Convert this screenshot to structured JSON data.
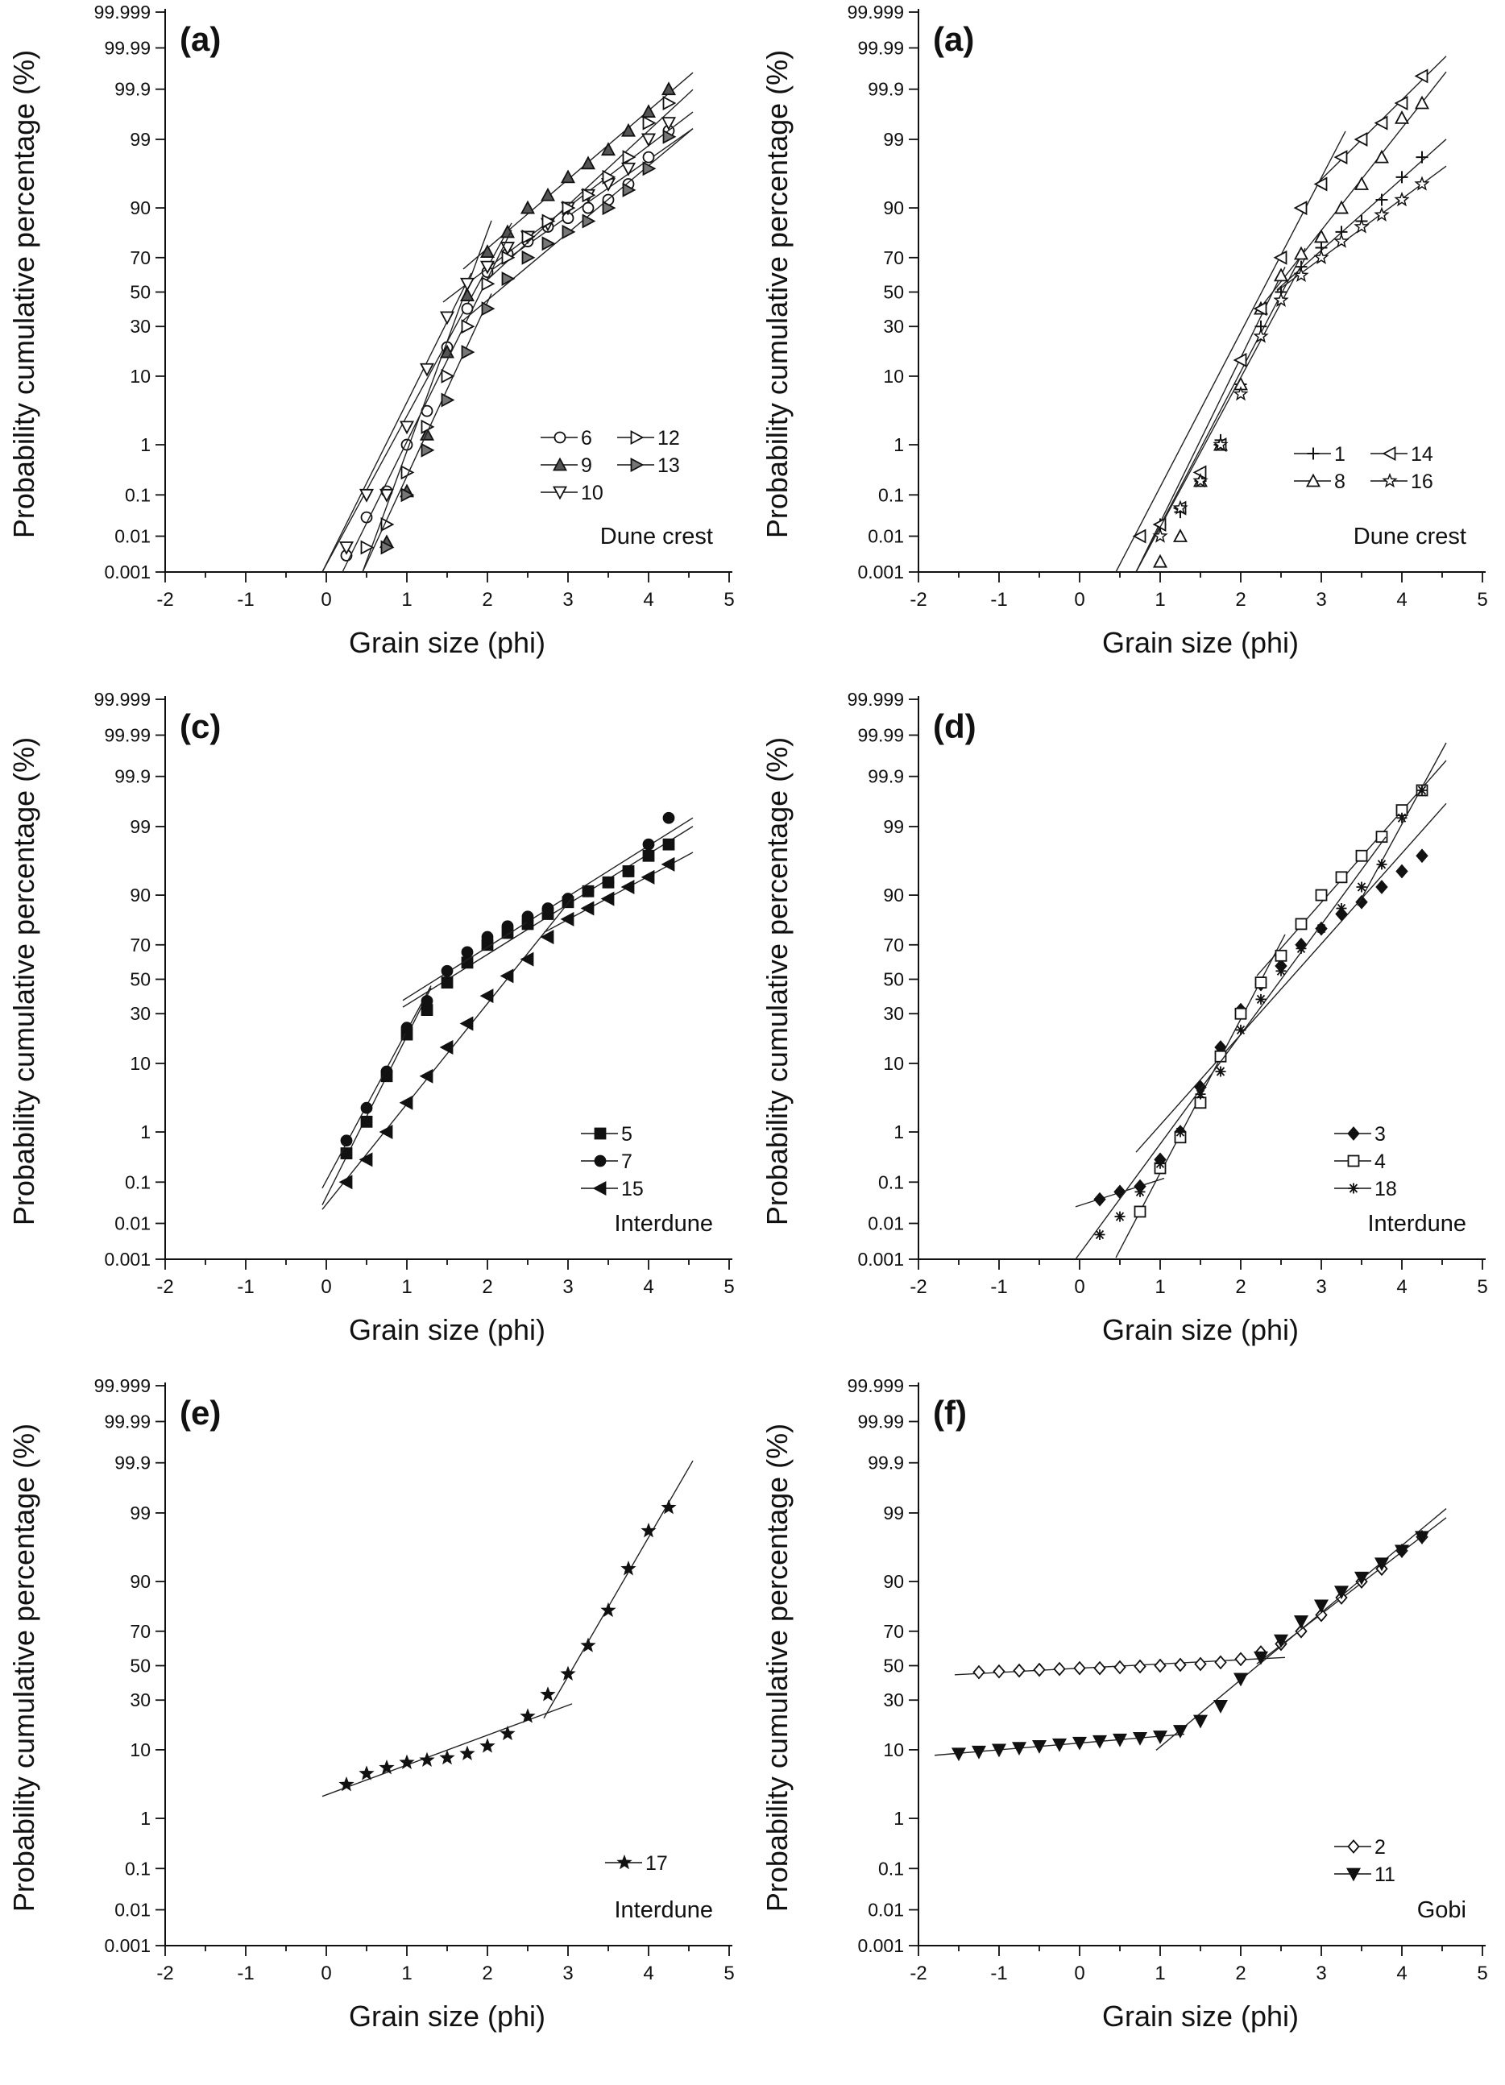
{
  "figure": {
    "ylabel": "Probability cumulative percentage (%)",
    "xlabel": "Grain size (phi)",
    "x_ticks": [
      "-2",
      "-1",
      "0",
      "1",
      "2",
      "3",
      "4",
      "5"
    ],
    "y_ticks": [
      "0.001",
      "0.01",
      "0.1",
      "1",
      "10",
      "30",
      "50",
      "70",
      "90",
      "99",
      "99.9",
      "99.99",
      "99.999"
    ]
  },
  "chart_data": [
    {
      "type": "scatter",
      "panel_label": "(a)",
      "env_label": "Dune crest",
      "title": "",
      "xlabel": "Grain size (phi)",
      "ylabel": "Probability cumulative percentage (%)",
      "xlim": [
        -2,
        5
      ],
      "ylim": [
        0.001,
        99.999
      ],
      "y_scale": "probability",
      "legend": {
        "position": "bottom-right",
        "columns": 2,
        "entries": [
          "6",
          "12",
          "9",
          "13",
          "10"
        ]
      },
      "series": [
        {
          "name": "6",
          "marker": "circle-open",
          "x": [
            0.25,
            0.5,
            0.75,
            1.0,
            1.25,
            1.5,
            1.75,
            2.0,
            2.25,
            2.5,
            2.75,
            3.0,
            3.25,
            3.5,
            3.75,
            4.0,
            4.25
          ],
          "y": [
            0.003,
            0.03,
            0.12,
            1.0,
            3.5,
            20,
            40,
            62,
            72,
            78,
            84,
            87,
            90,
            92,
            95,
            98,
            99.3
          ]
        },
        {
          "name": "9",
          "marker": "triangle-up-filled",
          "x": [
            0.75,
            1.0,
            1.25,
            1.5,
            1.75,
            2.0,
            2.25,
            2.5,
            2.75,
            3.0,
            3.25,
            3.5,
            3.75,
            4.0,
            4.25
          ],
          "y": [
            0.007,
            0.12,
            1.5,
            18,
            48,
            73,
            82,
            90,
            93,
            96,
            97.5,
            98.5,
            99.3,
            99.7,
            99.9
          ]
        },
        {
          "name": "10",
          "marker": "triangle-down-open",
          "x": [
            0.25,
            0.5,
            0.75,
            1.0,
            1.25,
            1.5,
            1.75,
            2.0,
            2.25,
            2.5,
            2.75,
            3.0,
            3.25,
            3.5,
            3.75,
            4.0,
            4.25
          ],
          "y": [
            0.005,
            0.1,
            0.1,
            2,
            12,
            35,
            55,
            65,
            75,
            80,
            85,
            90,
            93,
            95,
            97,
            99,
            99.5
          ]
        },
        {
          "name": "12",
          "marker": "triangle-right-open",
          "x": [
            0.5,
            0.75,
            1.0,
            1.25,
            1.5,
            1.75,
            2.0,
            2.25,
            2.5,
            2.75,
            3.0,
            3.25,
            3.5,
            3.75,
            4.0,
            4.25
          ],
          "y": [
            0.005,
            0.02,
            0.3,
            2,
            10,
            30,
            55,
            70,
            80,
            86,
            90,
            93,
            96,
            98,
            99.5,
            99.8
          ]
        },
        {
          "name": "13",
          "marker": "triangle-right-filled",
          "x": [
            0.75,
            1.0,
            1.25,
            1.5,
            1.75,
            2.0,
            2.25,
            2.5,
            2.75,
            3.0,
            3.25,
            3.5,
            3.75,
            4.0,
            4.25
          ],
          "y": [
            0.005,
            0.1,
            0.8,
            5,
            18,
            40,
            58,
            70,
            77,
            82,
            86,
            90,
            94,
            97,
            99.1
          ]
        }
      ]
    },
    {
      "type": "scatter",
      "panel_label": "(a)",
      "env_label": "Dune crest",
      "title": "",
      "xlabel": "Grain size (phi)",
      "ylabel": "Probability cumulative percentage (%)",
      "xlim": [
        -2,
        5
      ],
      "ylim": [
        0.001,
        99.999
      ],
      "y_scale": "probability",
      "legend": {
        "position": "bottom-right",
        "columns": 2,
        "entries": [
          "1",
          "14",
          "8",
          "16"
        ]
      },
      "series": [
        {
          "name": "1",
          "marker": "plus",
          "x": [
            1.0,
            1.25,
            1.5,
            1.75,
            2.0,
            2.25,
            2.5,
            2.75,
            3.0,
            3.25,
            3.5,
            3.75,
            4.0,
            4.25
          ],
          "y": [
            0.02,
            0.04,
            0.2,
            1.2,
            8,
            30,
            50,
            65,
            75,
            82,
            86,
            92,
            96,
            98
          ]
        },
        {
          "name": "8",
          "marker": "triangle-up-open",
          "x": [
            1.0,
            1.25,
            1.5,
            1.75,
            2.0,
            2.25,
            2.5,
            2.75,
            3.0,
            3.25,
            3.5,
            3.75,
            4.0,
            4.25
          ],
          "y": [
            0.002,
            0.01,
            0.2,
            1,
            8,
            40,
            60,
            72,
            80,
            90,
            95,
            98,
            99.6,
            99.8
          ]
        },
        {
          "name": "14",
          "marker": "triangle-left-open",
          "x": [
            0.75,
            1.0,
            1.25,
            1.5,
            1.75,
            2.0,
            2.25,
            2.5,
            2.75,
            3.0,
            3.25,
            3.5,
            3.75,
            4.0,
            4.25
          ],
          "y": [
            0.01,
            0.02,
            0.05,
            0.3,
            1,
            15,
            40,
            70,
            90,
            95,
            98,
            99,
            99.5,
            99.8,
            99.95
          ]
        },
        {
          "name": "16",
          "marker": "star",
          "x": [
            1.0,
            1.25,
            1.5,
            1.75,
            2.0,
            2.25,
            2.5,
            2.75,
            3.0,
            3.25,
            3.5,
            3.75,
            4.0,
            4.25
          ],
          "y": [
            0.01,
            0.05,
            0.2,
            1,
            6,
            25,
            45,
            60,
            70,
            78,
            84,
            88,
            92,
            95
          ]
        }
      ]
    },
    {
      "type": "scatter",
      "panel_label": "(c)",
      "env_label": "Interdune",
      "title": "",
      "xlabel": "Grain size (phi)",
      "ylabel": "Probability cumulative percentage (%)",
      "xlim": [
        -2,
        5
      ],
      "ylim": [
        0.001,
        99.999
      ],
      "y_scale": "probability",
      "legend": {
        "position": "bottom-right",
        "columns": 1,
        "entries": [
          "5",
          "7",
          "15"
        ]
      },
      "series": [
        {
          "name": "5",
          "marker": "square-filled",
          "x": [
            0.25,
            0.5,
            0.75,
            1.0,
            1.25,
            1.5,
            1.75,
            2.0,
            2.25,
            2.5,
            2.75,
            3.0,
            3.25,
            3.5,
            3.75,
            4.0,
            4.25
          ],
          "y": [
            0.4,
            1.5,
            7,
            20,
            32,
            48,
            60,
            70,
            76,
            80,
            84,
            88,
            91,
            93,
            95,
            97,
            98
          ]
        },
        {
          "name": "7",
          "marker": "circle-filled",
          "x": [
            0.25,
            0.5,
            0.75,
            1.0,
            1.25,
            1.5,
            1.75,
            2.0,
            2.25,
            2.5,
            2.75,
            3.0,
            3.25,
            3.5,
            3.75,
            4.0,
            4.25
          ],
          "y": [
            0.7,
            2.5,
            8,
            23,
            37,
            55,
            66,
            74,
            79,
            83,
            86,
            89,
            91,
            93,
            95,
            98,
            99.3
          ]
        },
        {
          "name": "15",
          "marker": "triangle-left-filled",
          "x": [
            0.25,
            0.5,
            0.75,
            1.0,
            1.25,
            1.5,
            1.75,
            2.0,
            2.25,
            2.5,
            2.75,
            3.0,
            3.25,
            3.5,
            3.75,
            4.0,
            4.25
          ],
          "y": [
            0.1,
            0.3,
            1,
            3,
            7,
            15,
            25,
            40,
            52,
            62,
            74,
            82,
            86,
            89,
            92,
            94,
            96
          ]
        }
      ]
    },
    {
      "type": "scatter",
      "panel_label": "(d)",
      "env_label": "Interdune",
      "title": "",
      "xlabel": "Grain size (phi)",
      "ylabel": "Probability cumulative percentage (%)",
      "xlim": [
        -2,
        5
      ],
      "ylim": [
        0.001,
        99.999
      ],
      "y_scale": "probability",
      "legend": {
        "position": "bottom-right",
        "columns": 1,
        "entries": [
          "3",
          "4",
          "18"
        ]
      },
      "series": [
        {
          "name": "3",
          "marker": "diamond-filled",
          "x": [
            0.25,
            0.5,
            0.75,
            1.0,
            1.25,
            1.5,
            1.75,
            2.0,
            2.25,
            2.5,
            2.75,
            3.0,
            3.25,
            3.5,
            3.75,
            4.0,
            4.25
          ],
          "y": [
            0.04,
            0.06,
            0.08,
            0.3,
            1,
            5,
            15,
            32,
            47,
            58,
            70,
            78,
            84,
            88,
            92,
            95,
            97
          ]
        },
        {
          "name": "4",
          "marker": "square-open",
          "x": [
            0.75,
            1.0,
            1.25,
            1.5,
            1.75,
            2.0,
            2.25,
            2.5,
            2.75,
            3.0,
            3.25,
            3.5,
            3.75,
            4.0,
            4.25
          ],
          "y": [
            0.02,
            0.2,
            0.8,
            3,
            12,
            30,
            48,
            64,
            80,
            90,
            94,
            97,
            98.5,
            99.5,
            99.8
          ]
        },
        {
          "name": "18",
          "marker": "asterisk",
          "x": [
            0.25,
            0.5,
            0.75,
            1.0,
            1.25,
            1.5,
            1.75,
            2.0,
            2.25,
            2.5,
            2.75,
            3.0,
            3.25,
            3.5,
            3.75,
            4.0,
            4.25
          ],
          "y": [
            0.005,
            0.015,
            0.06,
            0.25,
            1,
            4,
            8,
            22,
            38,
            55,
            68,
            78,
            86,
            92,
            96,
            99.3,
            99.8
          ]
        }
      ]
    },
    {
      "type": "scatter",
      "panel_label": "(e)",
      "env_label": "Interdune",
      "title": "",
      "xlabel": "Grain size (phi)",
      "ylabel": "Probability cumulative percentage (%)",
      "xlim": [
        -2,
        5
      ],
      "ylim": [
        0.001,
        99.999
      ],
      "y_scale": "probability",
      "legend": {
        "position": "bottom-right",
        "columns": 1,
        "entries": [
          "17"
        ]
      },
      "series": [
        {
          "name": "17",
          "marker": "star-filled",
          "x": [
            0.25,
            0.5,
            0.75,
            1.0,
            1.25,
            1.5,
            1.75,
            2.0,
            2.25,
            2.5,
            2.75,
            3.0,
            3.25,
            3.5,
            3.75,
            4.0,
            4.25
          ],
          "y": [
            3.5,
            5,
            6,
            7,
            7.5,
            8,
            9,
            11,
            15,
            22,
            33,
            45,
            62,
            80,
            93,
            98,
            99.2
          ]
        }
      ]
    },
    {
      "type": "scatter",
      "panel_label": "(f)",
      "env_label": "Gobi",
      "title": "",
      "xlabel": "Grain size (phi)",
      "ylabel": "Probability cumulative percentage (%)",
      "xlim": [
        -2,
        5
      ],
      "ylim": [
        0.001,
        99.999
      ],
      "y_scale": "probability",
      "legend": {
        "position": "bottom-right",
        "columns": 1,
        "entries": [
          "2",
          "11"
        ]
      },
      "series": [
        {
          "name": "2",
          "marker": "diamond-open",
          "x": [
            -1.25,
            -1.0,
            -0.75,
            -0.5,
            -0.25,
            0.0,
            0.25,
            0.5,
            0.75,
            1.0,
            1.25,
            1.5,
            1.75,
            2.0,
            2.25,
            2.5,
            2.75,
            3.0,
            3.25,
            3.5,
            3.75,
            4.0,
            4.25
          ],
          "y": [
            46,
            46.5,
            47,
            47.5,
            48,
            48.5,
            48.5,
            49,
            49.5,
            50,
            50.5,
            51,
            52,
            54,
            58,
            63,
            70,
            78,
            85,
            90,
            93,
            96,
            97.5
          ]
        },
        {
          "name": "11",
          "marker": "triangle-down-filled",
          "x": [
            -1.5,
            -1.25,
            -1.0,
            -0.75,
            -0.5,
            -0.25,
            0.0,
            0.25,
            0.5,
            0.75,
            1.0,
            1.25,
            1.5,
            1.75,
            2.0,
            2.25,
            2.5,
            2.75,
            3.0,
            3.25,
            3.5,
            3.75,
            4.0,
            4.25
          ],
          "y": [
            9,
            9.5,
            10,
            10.5,
            11,
            11.5,
            12,
            12.5,
            13,
            13.5,
            14,
            16,
            20,
            27,
            42,
            55,
            65,
            75,
            82,
            87,
            91,
            94,
            96,
            97.5
          ]
        }
      ]
    }
  ]
}
